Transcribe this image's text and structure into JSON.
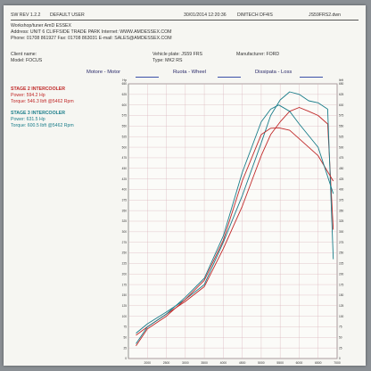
{
  "header": {
    "version": "SW REV 1.2.2",
    "user": "DEFAULT USER",
    "datetime": "30/01/2014 12:20:36",
    "device": "DIMTECH DF4IS",
    "file": "JS59FRS2.dwn"
  },
  "workshop": {
    "line1": "Workshop/tuner AmD ESSEX",
    "line2": "Address: UNIT 6 CLIFFSIDE TRADE PARK Internet: WWW.AMDESSEX.COM",
    "line3": "Phone: 01708 861927 Fax: 01708 863031 E-mail: SALES@AMDESSEX.COM"
  },
  "vehicle": {
    "client": "Client name:",
    "model": "Model: FOCUS",
    "plate": "Vehicle plate: JS59 FRS",
    "type": "Type: MK2 RS",
    "manufacturer": "Manufacturer: FORD"
  },
  "legend": {
    "motor": "Motore - Motor",
    "wheel": "Ruota - Wheel",
    "loss": "Dissipata - Loss"
  },
  "stages": [
    {
      "title": "STAGE 2 INTERCOOLER",
      "power": "Power: 594.2 Hp",
      "torque": "Torque: 546.3 lbft @5462 Rpm",
      "color": "#c02828"
    },
    {
      "title": "STAGE 3 INTERCOOLER",
      "power": "Power: 631.5 Hp",
      "torque": "Torque: 600.5 lbft @5462 Rpm",
      "color": "#1a7d8a"
    }
  ],
  "chart_data": {
    "type": "line",
    "xlabel": "rpm",
    "ylabel_left": "Hp",
    "ylabel_right": "lbft",
    "xlim": [
      1500,
      7000
    ],
    "ylim_power": [
      0,
      650
    ],
    "ylim_torque": [
      0,
      650
    ],
    "x_ticks": [
      2000,
      2500,
      3000,
      3500,
      4000,
      4500,
      5000,
      5500,
      6000,
      6500,
      7000
    ],
    "y_ticks": [
      0,
      25,
      50,
      75,
      100,
      125,
      150,
      175,
      200,
      225,
      250,
      275,
      300,
      325,
      350,
      375,
      400,
      425,
      450,
      475,
      500,
      525,
      550,
      575,
      600,
      625,
      650
    ],
    "grid": true,
    "series": [
      {
        "name": "STAGE 2 INTERCOOLER power",
        "color": "#c02828",
        "x": [
          1700,
          2000,
          2500,
          3000,
          3500,
          4000,
          4500,
          5000,
          5250,
          5500,
          5750,
          6000,
          6250,
          6500,
          6750,
          6900
        ],
        "y": [
          55,
          75,
          105,
          135,
          170,
          260,
          360,
          480,
          530,
          560,
          585,
          594,
          585,
          575,
          555,
          305
        ]
      },
      {
        "name": "STAGE 3 INTERCOOLER power",
        "color": "#1a7d8a",
        "x": [
          1700,
          2000,
          2500,
          3000,
          3500,
          4000,
          4500,
          5000,
          5250,
          5500,
          5750,
          6000,
          6250,
          6500,
          6750,
          6900
        ],
        "y": [
          60,
          82,
          110,
          140,
          175,
          275,
          385,
          510,
          575,
          612,
          631,
          625,
          610,
          605,
          590,
          235
        ]
      },
      {
        "name": "STAGE 2 INTERCOOLER torque",
        "color": "#c02828",
        "x": [
          1700,
          2000,
          2500,
          3000,
          3500,
          4000,
          4500,
          5000,
          5250,
          5462,
          5750,
          6000,
          6500,
          6900
        ],
        "y": [
          30,
          70,
          100,
          140,
          185,
          280,
          420,
          530,
          545,
          546,
          540,
          520,
          480,
          420
        ]
      },
      {
        "name": "STAGE 3 INTERCOOLER torque",
        "color": "#1a7d8a",
        "x": [
          1700,
          2000,
          2500,
          3000,
          3500,
          4000,
          4500,
          5000,
          5250,
          5462,
          5750,
          6000,
          6500,
          6900
        ],
        "y": [
          35,
          75,
          105,
          145,
          190,
          290,
          440,
          560,
          590,
          600,
          585,
          555,
          500,
          390
        ]
      }
    ]
  }
}
